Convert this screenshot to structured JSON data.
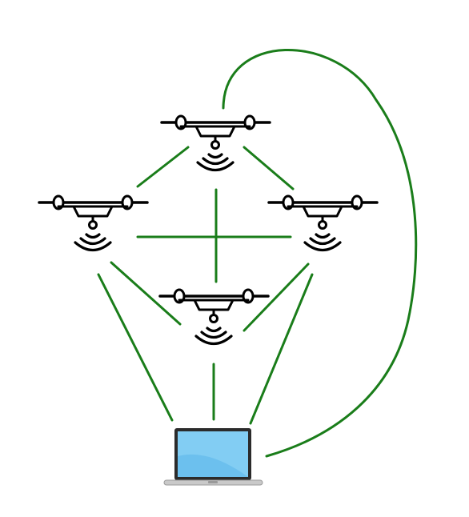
{
  "diagram": {
    "nodes": [
      {
        "id": "drone-top",
        "type": "drone",
        "icon": "drone-icon"
      },
      {
        "id": "drone-left",
        "type": "drone",
        "icon": "drone-icon"
      },
      {
        "id": "drone-right",
        "type": "drone",
        "icon": "drone-icon"
      },
      {
        "id": "drone-center",
        "type": "drone",
        "icon": "drone-icon"
      },
      {
        "id": "ground-laptop",
        "type": "laptop",
        "icon": "laptop-icon"
      }
    ],
    "links": [
      {
        "from": "drone-top",
        "to": "drone-left"
      },
      {
        "from": "drone-top",
        "to": "drone-right"
      },
      {
        "from": "drone-top",
        "to": "drone-center"
      },
      {
        "from": "drone-left",
        "to": "drone-right"
      },
      {
        "from": "drone-left",
        "to": "drone-center"
      },
      {
        "from": "drone-right",
        "to": "drone-center"
      },
      {
        "from": "drone-left",
        "to": "ground-laptop"
      },
      {
        "from": "drone-right",
        "to": "ground-laptop"
      },
      {
        "from": "drone-center",
        "to": "ground-laptop"
      },
      {
        "from": "drone-top",
        "to": "ground-laptop"
      }
    ],
    "colors": {
      "link": "#1a7d1a",
      "drone": "#000000",
      "screen": "#6cc0ee",
      "screen_frame": "#2b2b2b",
      "laptop_base": "#c9c9c9"
    }
  }
}
